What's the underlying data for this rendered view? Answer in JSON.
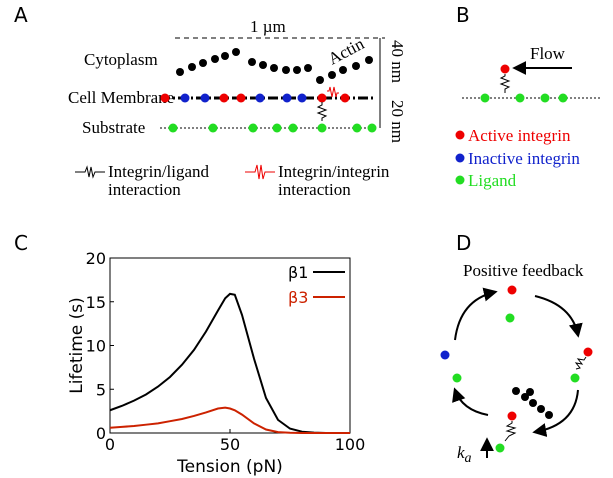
{
  "panels": {
    "a": "A",
    "b": "B",
    "c": "C",
    "d": "D"
  },
  "panel_a": {
    "scale_bar": "1 µm",
    "height_top": "40 nm",
    "height_bottom": "20 nm",
    "layers": [
      "Cytoplasm",
      "Cell Membrane",
      "Substrate"
    ],
    "actin": "Actin",
    "legend": [
      [
        "Integrin/ligand",
        "interaction"
      ],
      [
        "Integrin/integrin",
        "interaction"
      ]
    ]
  },
  "panel_b": {
    "flow": "Flow",
    "legend": [
      "Active integrin",
      "Inactive integrin",
      "Ligand"
    ]
  },
  "panel_d": {
    "title": "Positive feedback",
    "rate_symbol": "k",
    "rate_subscript": "a"
  },
  "chart_data": {
    "type": "line",
    "xlabel": "Tension (pN)",
    "ylabel": "Lifetime (s)",
    "x": [
      0,
      5,
      10,
      15,
      20,
      25,
      30,
      35,
      40,
      45,
      48,
      50,
      52,
      55,
      60,
      65,
      70,
      75,
      80,
      85,
      90,
      100
    ],
    "series": [
      {
        "name": "β1",
        "color": "#000000",
        "values": [
          2.6,
          3.1,
          3.7,
          4.4,
          5.3,
          6.4,
          7.8,
          9.5,
          11.6,
          14.0,
          15.4,
          15.9,
          15.8,
          13.5,
          8.5,
          4.0,
          1.5,
          0.5,
          0.15,
          0.05,
          0,
          0
        ]
      },
      {
        "name": "β3",
        "color": "#cc2200",
        "values": [
          0.6,
          0.7,
          0.8,
          0.95,
          1.1,
          1.35,
          1.6,
          1.95,
          2.35,
          2.8,
          2.9,
          2.8,
          2.6,
          2.1,
          1.1,
          0.4,
          0.1,
          0.03,
          0,
          0,
          0,
          0
        ]
      }
    ],
    "xlim": [
      0,
      100
    ],
    "xticks": [
      0,
      50,
      100
    ],
    "ylim": [
      0,
      20
    ],
    "yticks": [
      0,
      5,
      10,
      15,
      20
    ],
    "legend": "upper right"
  }
}
